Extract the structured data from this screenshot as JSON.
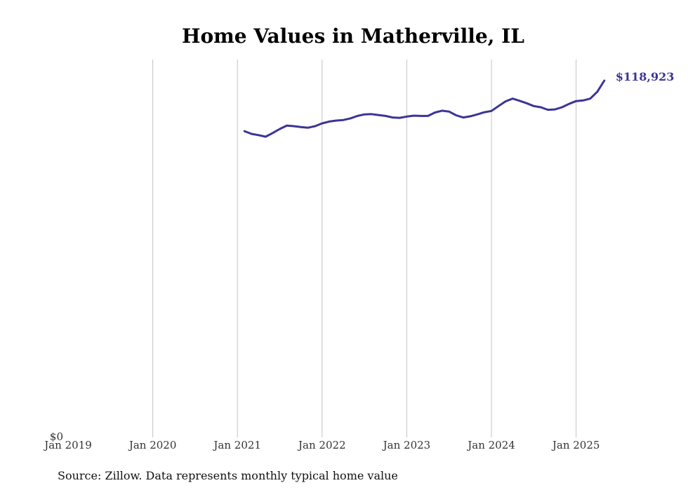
{
  "chart_data": {
    "type": "line",
    "title": "Home Values in Matherville, IL",
    "xlabel": "",
    "ylabel": "",
    "y_tick_label": "$0",
    "x_tick_labels": [
      "Jan 2019",
      "Jan 2020",
      "Jan 2021",
      "Jan 2022",
      "Jan 2023",
      "Jan 2024",
      "Jan 2025"
    ],
    "grid": "vertical",
    "legend": "none",
    "line_color": "#3a3597",
    "end_label": "$118,923",
    "note": "Source: Zillow. Data represents monthly typical home value",
    "xlim": [
      "2019-01",
      "2025-08"
    ],
    "ylim": [
      0,
      122000
    ],
    "series": [
      {
        "points": [
          [
            "2021-02",
            98900
          ],
          [
            "2021-03",
            98000
          ],
          [
            "2021-04",
            97600
          ],
          [
            "2021-05",
            97100
          ],
          [
            "2021-06",
            98300
          ],
          [
            "2021-07",
            99600
          ],
          [
            "2021-08",
            100700
          ],
          [
            "2021-09",
            100500
          ],
          [
            "2021-10",
            100200
          ],
          [
            "2021-11",
            100000
          ],
          [
            "2021-12",
            100500
          ],
          [
            "2022-01",
            101400
          ],
          [
            "2022-02",
            102000
          ],
          [
            "2022-03",
            102300
          ],
          [
            "2022-04",
            102500
          ],
          [
            "2022-05",
            103000
          ],
          [
            "2022-06",
            103800
          ],
          [
            "2022-07",
            104300
          ],
          [
            "2022-08",
            104400
          ],
          [
            "2022-09",
            104100
          ],
          [
            "2022-10",
            103800
          ],
          [
            "2022-11",
            103300
          ],
          [
            "2022-12",
            103200
          ],
          [
            "2023-01",
            103600
          ],
          [
            "2023-02",
            103900
          ],
          [
            "2023-03",
            103800
          ],
          [
            "2023-04",
            103800
          ],
          [
            "2023-05",
            104900
          ],
          [
            "2023-06",
            105500
          ],
          [
            "2023-07",
            105200
          ],
          [
            "2023-08",
            104000
          ],
          [
            "2023-09",
            103300
          ],
          [
            "2023-10",
            103700
          ],
          [
            "2023-11",
            104300
          ],
          [
            "2023-12",
            105000
          ],
          [
            "2024-01",
            105400
          ],
          [
            "2024-02",
            107000
          ],
          [
            "2024-03",
            108500
          ],
          [
            "2024-04",
            109400
          ],
          [
            "2024-05",
            108700
          ],
          [
            "2024-06",
            107900
          ],
          [
            "2024-07",
            107000
          ],
          [
            "2024-08",
            106600
          ],
          [
            "2024-09",
            105800
          ],
          [
            "2024-10",
            105900
          ],
          [
            "2024-11",
            106600
          ],
          [
            "2024-12",
            107700
          ],
          [
            "2025-01",
            108600
          ],
          [
            "2025-02",
            108800
          ],
          [
            "2025-03",
            109400
          ],
          [
            "2025-04",
            111600
          ],
          [
            "2025-05",
            115200
          ]
        ]
      }
    ]
  }
}
